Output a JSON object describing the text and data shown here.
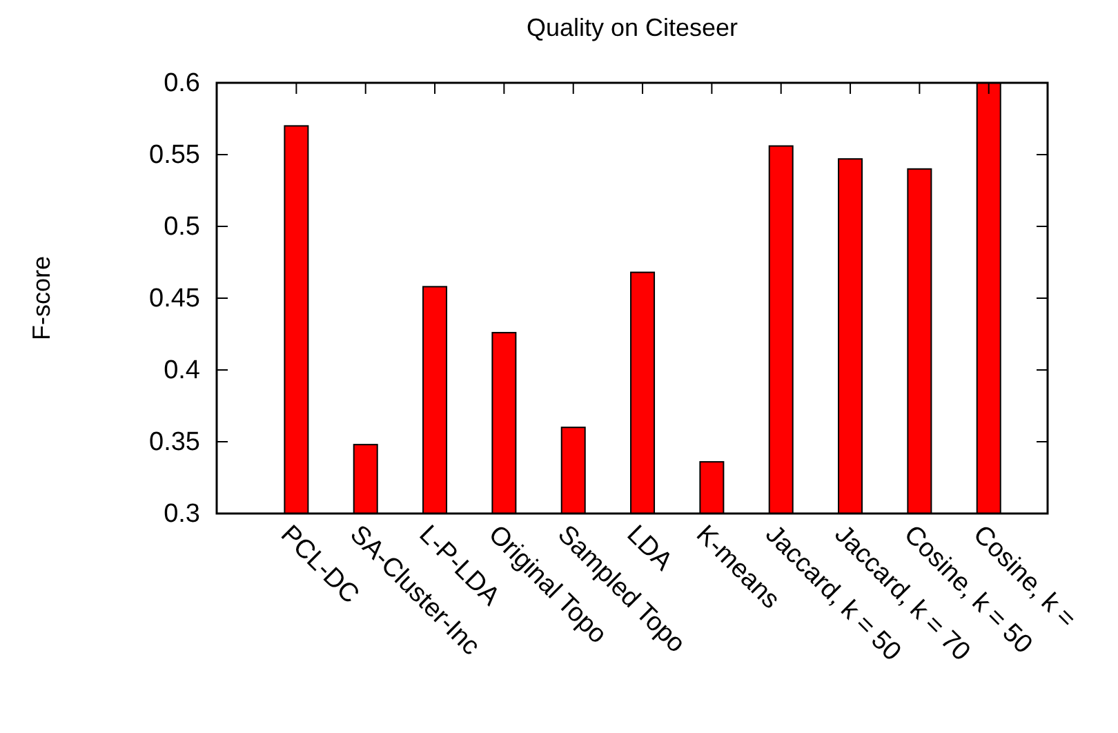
{
  "chart_data": {
    "type": "bar",
    "title": "Quality on Citeseer",
    "ylabel": "F-score",
    "categories": [
      "PCL-DC",
      "SA-Cluster-Inc",
      "L-P-LDA",
      "Original Topo",
      "Sampled Topo",
      "LDA",
      "K-means",
      "Jaccard, k = 50",
      "Jaccard, k = 70",
      "Cosine, k = 50",
      "Cosine, k ="
    ],
    "values": [
      0.57,
      0.348,
      0.458,
      0.426,
      0.36,
      0.468,
      0.336,
      0.556,
      0.547,
      0.54,
      0.6
    ],
    "color": "#ff0000",
    "ylim": [
      0.3,
      0.6
    ],
    "yticks": [
      0.3,
      0.35,
      0.4,
      0.45,
      0.5,
      0.55,
      0.6
    ],
    "grid": false
  }
}
